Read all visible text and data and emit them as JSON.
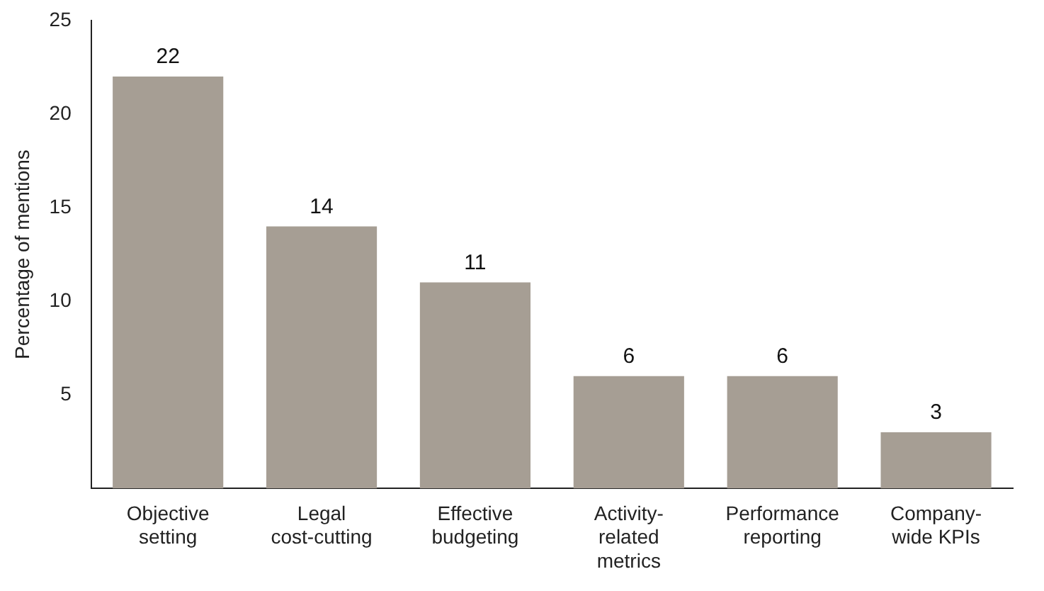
{
  "chart_data": {
    "type": "bar",
    "ylabel": "Percentage of mentions",
    "categories": [
      "Objective\nsetting",
      "Legal\ncost-cutting",
      "Effective\nbudgeting",
      "Activity-\nrelated\nmetrics",
      "Performance\nreporting",
      "Company-\nwide KPIs"
    ],
    "values": [
      22,
      14,
      11,
      6,
      6,
      3
    ],
    "color": "#a69e94",
    "ylim": [
      0,
      25
    ],
    "yticks": [
      5,
      10,
      15,
      20,
      25
    ],
    "grid": false,
    "legend": false,
    "data_labels": true
  }
}
